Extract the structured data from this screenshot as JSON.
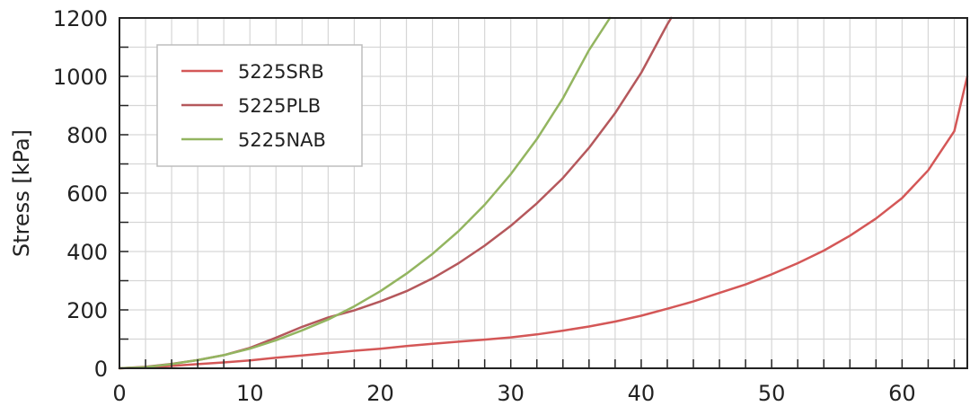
{
  "chart_data": {
    "type": "line",
    "title": "",
    "xlabel": "",
    "ylabel": "Stress [kPa]",
    "xlim": [
      0,
      65
    ],
    "ylim": [
      0,
      1200
    ],
    "x_ticks": [
      0,
      10,
      20,
      30,
      40,
      50,
      60
    ],
    "y_ticks": [
      0,
      200,
      400,
      600,
      800,
      1000,
      1200
    ],
    "x_minor_step": 2,
    "y_minor_step": 100,
    "grid": true,
    "legend_position": "top-left",
    "series": [
      {
        "name": "5225SRB",
        "color": "#d45757",
        "x": [
          0,
          2,
          4,
          6,
          8,
          10,
          12,
          14,
          16,
          18,
          20,
          22,
          24,
          26,
          28,
          30,
          32,
          34,
          36,
          38,
          40,
          42,
          44,
          46,
          48,
          50,
          52,
          54,
          56,
          58,
          60,
          62,
          64,
          65
        ],
        "y": [
          0,
          3,
          8,
          14,
          20,
          27,
          36,
          44,
          52,
          60,
          67,
          76,
          84,
          91,
          98,
          106,
          116,
          129,
          143,
          160,
          180,
          204,
          229,
          258,
          287,
          322,
          360,
          403,
          454,
          513,
          583,
          678,
          812,
          1000
        ]
      },
      {
        "name": "5225PLB",
        "color": "#b5585c",
        "x": [
          0,
          2,
          4,
          6,
          8,
          10,
          12,
          14,
          16,
          18,
          20,
          22,
          24,
          26,
          28,
          30,
          32,
          34,
          36,
          38,
          40,
          42,
          42.3
        ],
        "y": [
          0,
          5,
          15,
          28,
          45,
          70,
          105,
          142,
          174,
          198,
          229,
          264,
          308,
          360,
          420,
          488,
          565,
          652,
          755,
          874,
          1012,
          1178,
          1200
        ]
      },
      {
        "name": "5225NAB",
        "color": "#93b560",
        "x": [
          0,
          2,
          4,
          6,
          8,
          10,
          12,
          14,
          16,
          18,
          20,
          22,
          24,
          26,
          28,
          30,
          32,
          34,
          36,
          37.6
        ],
        "y": [
          0,
          4,
          14,
          28,
          45,
          67,
          96,
          130,
          167,
          212,
          264,
          324,
          392,
          470,
          560,
          665,
          785,
          925,
          1090,
          1200
        ]
      }
    ]
  }
}
